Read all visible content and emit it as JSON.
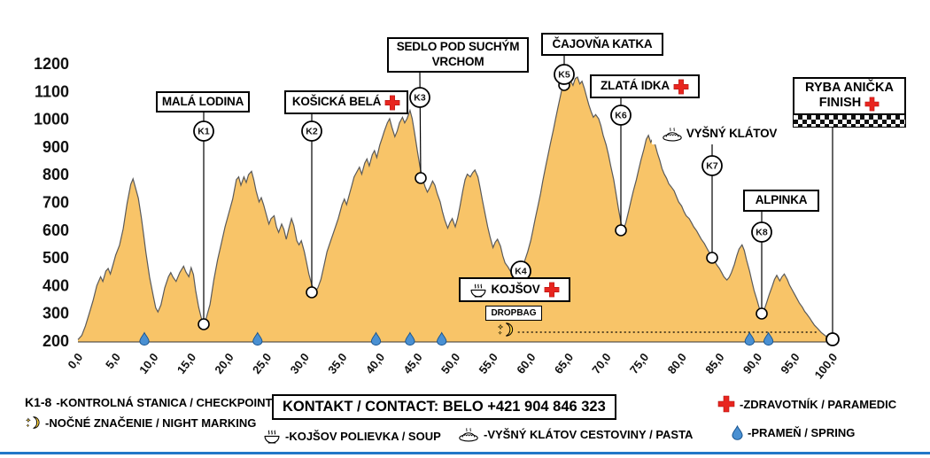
{
  "legend": {
    "checkpoint_key": "K1-8",
    "checkpoint_text": "-KONTROLNÁ STANICA / CHECKPOINT",
    "night_text": "-NOČNÉ ZNAČENIE / NIGHT MARKING",
    "soup_text": "-KOJŠOV POLIEVKA / SOUP",
    "pasta_text": "-VYŠNÝ KLÁTOV CESTOVINY / PASTA",
    "medic_text": "-ZDRAVOTNÍK / PARAMEDIC",
    "spring_text": "-PRAMEŇ / SPRING",
    "contact": "KONTAKT / CONTACT: BELO +421 904 846 323"
  },
  "chart_data": {
    "type": "area",
    "xlabel": "",
    "ylabel": "",
    "xlim": [
      0,
      100
    ],
    "ylim": [
      200,
      1200
    ],
    "grid": false,
    "x_tick_step_km": 5,
    "x_tick_labels": [
      "0,0",
      "5,0",
      "10,0",
      "15,0",
      "20,0",
      "25,0",
      "30,0",
      "35,0",
      "40,0",
      "45,0",
      "50,0",
      "55,0",
      "60,0",
      "65,0",
      "70,0",
      "75,0",
      "80,0",
      "85,0",
      "90,0",
      "95,0",
      "100,0"
    ],
    "y_tick_labels": [
      "1200",
      "1100",
      "1000",
      "900",
      "800",
      "700",
      "600",
      "500",
      "400",
      "300",
      "200"
    ],
    "colors": {
      "fill": "#F8C468",
      "outline": "#5a5a5a",
      "medic_red": "#E8251F",
      "spring_blue": "#4A90D2",
      "moon_yellow": "#FFD23B"
    },
    "checkpoints": [
      {
        "id": "K1",
        "name": "MALÁ LODINA",
        "km": 16.7,
        "elev_m": 260,
        "medic": false,
        "food": null
      },
      {
        "id": "K2",
        "name": "KOŠICKÁ BELÁ",
        "km": 31.4,
        "elev_m": 375,
        "medic": true,
        "food": null
      },
      {
        "id": "K3",
        "name": "SEDLO POD SUCHÝM VRCHOM",
        "km": 45.5,
        "elev_m": 790,
        "medic": false,
        "food": null
      },
      {
        "id": "K4",
        "name": "KOJŠOV",
        "km": 58.7,
        "elev_m": 450,
        "medic": true,
        "food": "soup",
        "dropbag": true
      },
      {
        "id": "K5",
        "name": "ČAJOVŇA KATKA",
        "km": 64.5,
        "elev_m": 1140,
        "medic": false,
        "food": null
      },
      {
        "id": "K6",
        "name": "ZLATÁ IDKA",
        "km": 72.0,
        "elev_m": 600,
        "medic": true,
        "food": null
      },
      {
        "id": "K7",
        "name": "VYŠNÝ KLÁTOV",
        "km": 84.0,
        "elev_m": 500,
        "medic": false,
        "food": "pasta"
      },
      {
        "id": "K8",
        "name": "ALPINKA",
        "km": 90.5,
        "elev_m": 300,
        "medic": false,
        "food": null
      }
    ],
    "finish": {
      "name": "RYBA ANIČKA",
      "name2": "FINISH",
      "km": 100,
      "elev_m": 200,
      "medic": true
    },
    "dropbag_label": "DROPBAG",
    "springs_km": [
      8.8,
      23.8,
      39.5,
      44.0,
      48.2,
      89.0,
      91.5
    ],
    "night_marking_km": {
      "from": 58.3,
      "to": 98.2
    },
    "profile_km_elev": [
      [
        0,
        205
      ],
      [
        0.5,
        220
      ],
      [
        1,
        255
      ],
      [
        1.5,
        300
      ],
      [
        2,
        345
      ],
      [
        2.5,
        400
      ],
      [
        3,
        432
      ],
      [
        3.3,
        415
      ],
      [
        3.7,
        452
      ],
      [
        4,
        462
      ],
      [
        4.3,
        442
      ],
      [
        4.7,
        480
      ],
      [
        5,
        510
      ],
      [
        5.5,
        545
      ],
      [
        6,
        605
      ],
      [
        6.5,
        695
      ],
      [
        7,
        765
      ],
      [
        7.3,
        785
      ],
      [
        7.6,
        755
      ],
      [
        8,
        715
      ],
      [
        8.4,
        645
      ],
      [
        8.7,
        585
      ],
      [
        9,
        520
      ],
      [
        9.5,
        430
      ],
      [
        10,
        360
      ],
      [
        10.3,
        320
      ],
      [
        10.6,
        305
      ],
      [
        11,
        330
      ],
      [
        11.5,
        392
      ],
      [
        12,
        432
      ],
      [
        12.3,
        447
      ],
      [
        12.6,
        430
      ],
      [
        13,
        415
      ],
      [
        13.5,
        447
      ],
      [
        14,
        470
      ],
      [
        14.3,
        450
      ],
      [
        14.7,
        432
      ],
      [
        15,
        465
      ],
      [
        15.3,
        440
      ],
      [
        15.6,
        382
      ],
      [
        16,
        322
      ],
      [
        16.4,
        278
      ],
      [
        16.7,
        260
      ],
      [
        17,
        282
      ],
      [
        17.5,
        332
      ],
      [
        18,
        420
      ],
      [
        18.5,
        492
      ],
      [
        19,
        552
      ],
      [
        19.5,
        612
      ],
      [
        20,
        662
      ],
      [
        20.5,
        712
      ],
      [
        21,
        782
      ],
      [
        21.3,
        792
      ],
      [
        21.6,
        762
      ],
      [
        22,
        792
      ],
      [
        22.3,
        772
      ],
      [
        22.6,
        800
      ],
      [
        23,
        812
      ],
      [
        23.3,
        782
      ],
      [
        23.6,
        742
      ],
      [
        24,
        702
      ],
      [
        24.3,
        717
      ],
      [
        24.6,
        692
      ],
      [
        25,
        652
      ],
      [
        25.3,
        622
      ],
      [
        25.6,
        642
      ],
      [
        26,
        652
      ],
      [
        26.3,
        612
      ],
      [
        26.6,
        592
      ],
      [
        27,
        622
      ],
      [
        27.3,
        602
      ],
      [
        27.6,
        567
      ],
      [
        28,
        612
      ],
      [
        28.3,
        642
      ],
      [
        28.6,
        617
      ],
      [
        29,
        562
      ],
      [
        29.3,
        547
      ],
      [
        29.6,
        562
      ],
      [
        30,
        522
      ],
      [
        30.3,
        482
      ],
      [
        30.6,
        442
      ],
      [
        31,
        402
      ],
      [
        31.4,
        377
      ],
      [
        31.8,
        392
      ],
      [
        32.2,
        422
      ],
      [
        32.6,
        472
      ],
      [
        33,
        522
      ],
      [
        33.5,
        562
      ],
      [
        34,
        602
      ],
      [
        34.5,
        642
      ],
      [
        35,
        692
      ],
      [
        35.3,
        712
      ],
      [
        35.6,
        692
      ],
      [
        36,
        732
      ],
      [
        36.3,
        762
      ],
      [
        36.6,
        792
      ],
      [
        37,
        812
      ],
      [
        37.3,
        827
      ],
      [
        37.6,
        802
      ],
      [
        38,
        842
      ],
      [
        38.3,
        857
      ],
      [
        38.6,
        832
      ],
      [
        39,
        872
      ],
      [
        39.3,
        887
      ],
      [
        39.6,
        862
      ],
      [
        40,
        907
      ],
      [
        40.3,
        932
      ],
      [
        40.6,
        957
      ],
      [
        41,
        987
      ],
      [
        41.3,
        1002
      ],
      [
        41.6,
        972
      ],
      [
        42,
        937
      ],
      [
        42.3,
        957
      ],
      [
        42.6,
        987
      ],
      [
        43,
        1007
      ],
      [
        43.3,
        987
      ],
      [
        43.6,
        1002
      ],
      [
        44,
        1032
      ],
      [
        44.3,
        1002
      ],
      [
        44.6,
        952
      ],
      [
        45,
        882
      ],
      [
        45.3,
        832
      ],
      [
        45.6,
        792
      ],
      [
        46,
        757
      ],
      [
        46.3,
        737
      ],
      [
        46.6,
        752
      ],
      [
        47,
        777
      ],
      [
        47.3,
        762
      ],
      [
        47.6,
        732
      ],
      [
        48,
        702
      ],
      [
        48.3,
        667
      ],
      [
        48.6,
        637
      ],
      [
        49,
        607
      ],
      [
        49.3,
        627
      ],
      [
        49.6,
        642
      ],
      [
        50,
        612
      ],
      [
        50.3,
        642
      ],
      [
        50.6,
        682
      ],
      [
        51,
        742
      ],
      [
        51.3,
        782
      ],
      [
        51.6,
        802
      ],
      [
        52,
        792
      ],
      [
        52.3,
        807
      ],
      [
        52.6,
        817
      ],
      [
        53,
        792
      ],
      [
        53.3,
        752
      ],
      [
        53.6,
        707
      ],
      [
        54,
        652
      ],
      [
        54.3,
        612
      ],
      [
        54.6,
        577
      ],
      [
        55,
        537
      ],
      [
        55.3,
        557
      ],
      [
        55.6,
        567
      ],
      [
        56,
        542
      ],
      [
        56.3,
        507
      ],
      [
        56.6,
        482
      ],
      [
        57,
        467
      ],
      [
        57.3,
        452
      ],
      [
        57.6,
        442
      ],
      [
        58,
        432
      ],
      [
        58.3,
        437
      ],
      [
        58.7,
        452
      ],
      [
        59,
        472
      ],
      [
        59.3,
        497
      ],
      [
        59.6,
        522
      ],
      [
        60,
        562
      ],
      [
        60.3,
        602
      ],
      [
        60.6,
        642
      ],
      [
        61,
        692
      ],
      [
        61.3,
        732
      ],
      [
        61.6,
        777
      ],
      [
        62,
        832
      ],
      [
        62.3,
        872
      ],
      [
        62.6,
        912
      ],
      [
        63,
        962
      ],
      [
        63.3,
        1002
      ],
      [
        63.6,
        1042
      ],
      [
        64,
        1092
      ],
      [
        64.3,
        1132
      ],
      [
        64.6,
        1172
      ],
      [
        64.9,
        1195
      ],
      [
        65.1,
        1175
      ],
      [
        65.3,
        1137
      ],
      [
        65.6,
        1122
      ],
      [
        65.9,
        1147
      ],
      [
        66.2,
        1152
      ],
      [
        66.5,
        1127
      ],
      [
        66.8,
        1137
      ],
      [
        67.1,
        1112
      ],
      [
        67.4,
        1082
      ],
      [
        67.7,
        1052
      ],
      [
        68,
        1027
      ],
      [
        68.3,
        1007
      ],
      [
        68.6,
        1017
      ],
      [
        69,
        1002
      ],
      [
        69.3,
        977
      ],
      [
        69.6,
        942
      ],
      [
        70,
        907
      ],
      [
        70.3,
        872
      ],
      [
        70.6,
        832
      ],
      [
        71,
        782
      ],
      [
        71.3,
        732
      ],
      [
        71.6,
        682
      ],
      [
        72,
        622
      ],
      [
        72.3,
        602
      ],
      [
        72.6,
        627
      ],
      [
        73,
        672
      ],
      [
        73.3,
        707
      ],
      [
        73.6,
        742
      ],
      [
        74,
        782
      ],
      [
        74.3,
        817
      ],
      [
        74.6,
        852
      ],
      [
        75,
        892
      ],
      [
        75.3,
        927
      ],
      [
        75.6,
        942
      ],
      [
        75.9,
        917
      ],
      [
        76.2,
        932
      ],
      [
        76.5,
        907
      ],
      [
        76.8,
        877
      ],
      [
        77.1,
        852
      ],
      [
        77.4,
        822
      ],
      [
        77.7,
        802
      ],
      [
        78,
        787
      ],
      [
        78.3,
        767
      ],
      [
        78.6,
        757
      ],
      [
        79,
        742
      ],
      [
        79.3,
        722
      ],
      [
        79.6,
        702
      ],
      [
        80,
        687
      ],
      [
        80.3,
        667
      ],
      [
        80.6,
        652
      ],
      [
        81,
        642
      ],
      [
        81.3,
        627
      ],
      [
        81.6,
        612
      ],
      [
        82,
        597
      ],
      [
        82.3,
        582
      ],
      [
        82.6,
        567
      ],
      [
        83,
        552
      ],
      [
        83.3,
        537
      ],
      [
        83.6,
        522
      ],
      [
        84,
        507
      ],
      [
        84.3,
        492
      ],
      [
        84.6,
        477
      ],
      [
        85,
        462
      ],
      [
        85.3,
        447
      ],
      [
        85.6,
        432
      ],
      [
        86,
        420
      ],
      [
        86.3,
        430
      ],
      [
        86.6,
        447
      ],
      [
        87,
        477
      ],
      [
        87.3,
        507
      ],
      [
        87.6,
        532
      ],
      [
        88,
        547
      ],
      [
        88.3,
        527
      ],
      [
        88.6,
        492
      ],
      [
        89,
        452
      ],
      [
        89.3,
        417
      ],
      [
        89.6,
        382
      ],
      [
        90,
        347
      ],
      [
        90.3,
        317
      ],
      [
        90.6,
        302
      ],
      [
        91,
        317
      ],
      [
        91.3,
        342
      ],
      [
        91.6,
        367
      ],
      [
        92,
        397
      ],
      [
        92.3,
        422
      ],
      [
        92.6,
        437
      ],
      [
        93,
        417
      ],
      [
        93.3,
        432
      ],
      [
        93.6,
        442
      ],
      [
        94,
        422
      ],
      [
        94.3,
        402
      ],
      [
        94.6,
        387
      ],
      [
        95,
        367
      ],
      [
        95.3,
        352
      ],
      [
        95.6,
        337
      ],
      [
        96,
        322
      ],
      [
        96.3,
        307
      ],
      [
        96.6,
        297
      ],
      [
        97,
        282
      ],
      [
        97.3,
        269
      ],
      [
        97.6,
        257
      ],
      [
        98,
        246
      ],
      [
        98.5,
        231
      ],
      [
        99,
        220
      ],
      [
        99.5,
        210
      ],
      [
        100,
        201
      ]
    ]
  }
}
